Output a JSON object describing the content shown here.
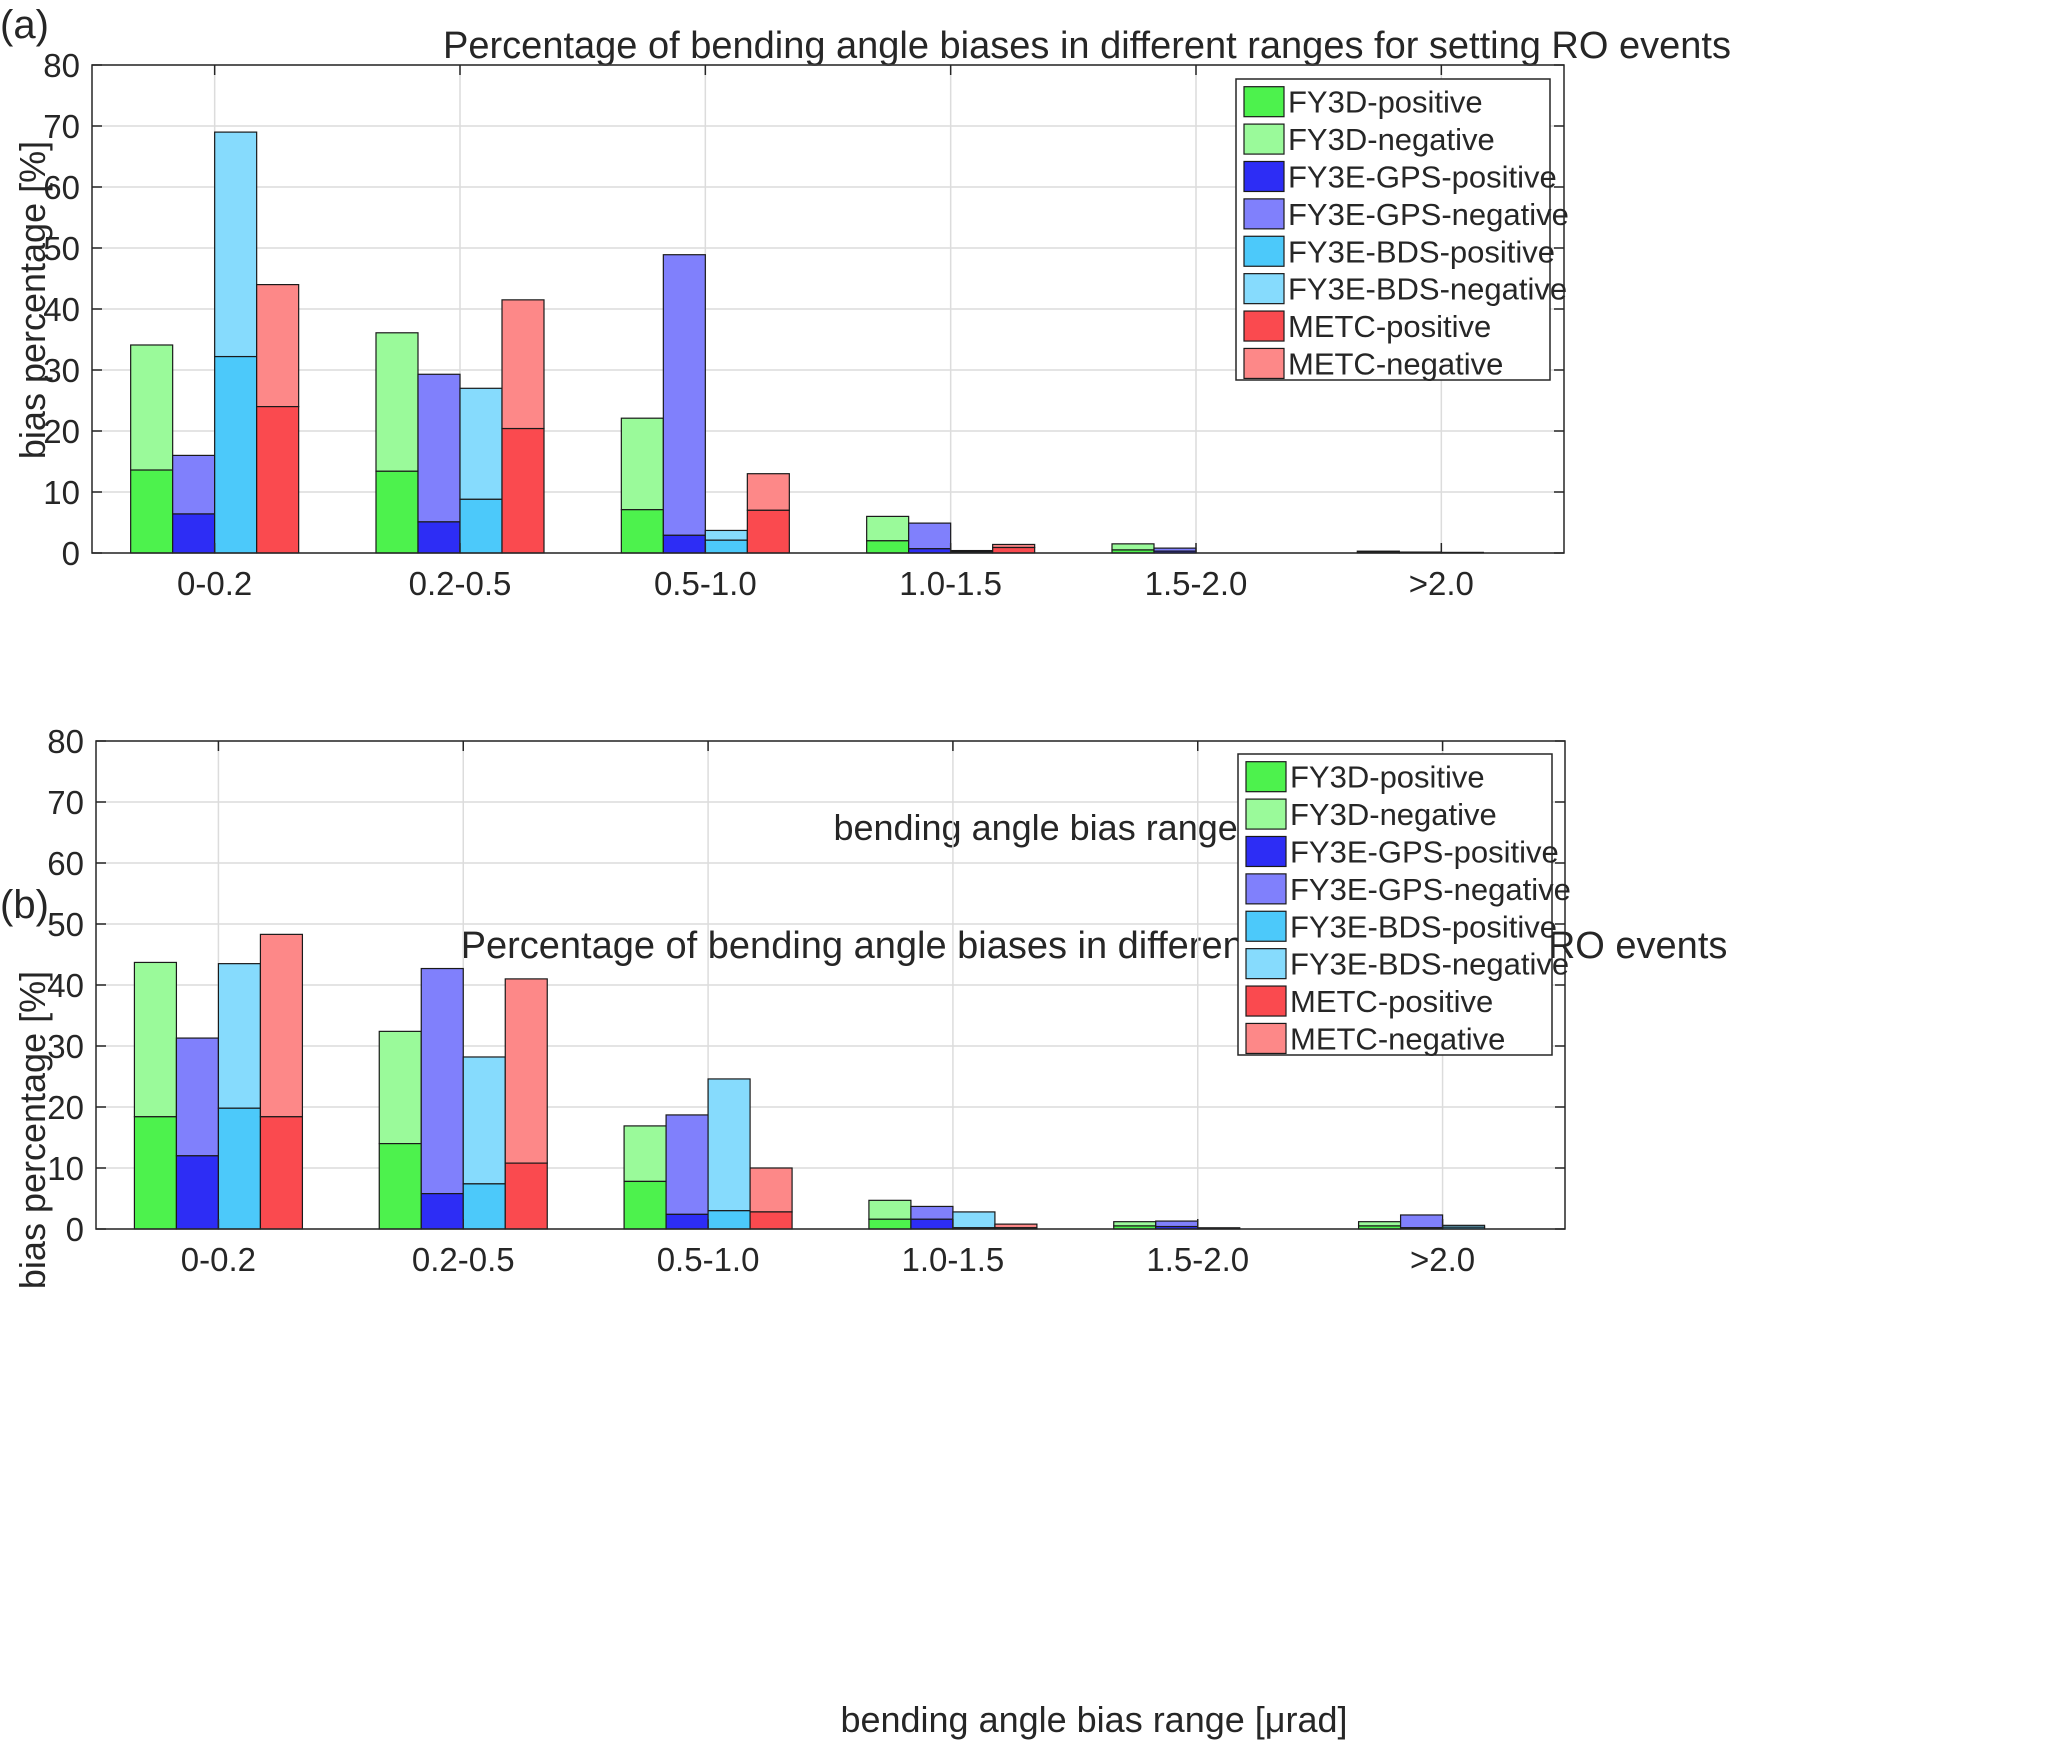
{
  "colors": {
    "FY3D-positive": "#4df24d",
    "FY3D-negative": "#9afa9a",
    "FY3E-GPS-positive": "#2d2df5",
    "FY3E-GPS-negative": "#8080fc",
    "FY3E-BDS-positive": "#4cc9fa",
    "FY3E-BDS-negative": "#86dbfd",
    "METC-positive": "#fa4a4f",
    "METC-negative": "#fd8888"
  },
  "chart_data": [
    {
      "type": "bar",
      "panel_label": "(a)",
      "title": "Percentage of bending angle biases in different ranges for setting RO events",
      "xlabel": "bending angle bias range [μrad]",
      "ylabel": "bias percentage [%]",
      "ylim": [
        0,
        80
      ],
      "yticks": [
        "0",
        "10",
        "20",
        "30",
        "40",
        "50",
        "60",
        "70",
        "80"
      ],
      "grid": true,
      "legend_position": "top-right",
      "categories": [
        "0-0.2",
        "0.2-0.5",
        "0.5-1.0",
        "1.0-1.5",
        "1.5-2.0",
        ">2.0"
      ],
      "legend": [
        "FY3D-positive",
        "FY3D-negative",
        "FY3E-GPS-positive",
        "FY3E-GPS-negative",
        "FY3E-BDS-positive",
        "FY3E-BDS-negative",
        "METC-positive",
        "METC-negative"
      ],
      "groups": [
        {
          "name": "FY3D",
          "positive": [
            13.6,
            13.4,
            7.1,
            2.0,
            0.5,
            0.1
          ],
          "total": [
            34.1,
            36.1,
            22.1,
            6.0,
            1.5,
            0.3
          ]
        },
        {
          "name": "FY3E-GPS",
          "positive": [
            6.4,
            5.1,
            2.9,
            0.7,
            0.3,
            0.05
          ],
          "total": [
            16.0,
            29.3,
            48.9,
            4.9,
            0.8,
            0.15
          ]
        },
        {
          "name": "FY3E-BDS",
          "positive": [
            32.2,
            8.8,
            2.1,
            0.2,
            0.0,
            0.05
          ],
          "total": [
            69.0,
            27.0,
            3.7,
            0.4,
            0.0,
            0.1
          ]
        },
        {
          "name": "METC",
          "positive": [
            24.0,
            20.4,
            7.0,
            0.9,
            0.0,
            0.0
          ],
          "total": [
            44.0,
            41.5,
            13.0,
            1.4,
            0.0,
            0.0
          ]
        }
      ]
    },
    {
      "type": "bar",
      "panel_label": "(b)",
      "title": "Percentage of bending angle biases in different ranges for rising RO events",
      "xlabel": "bending angle bias range [μrad]",
      "ylabel": "bias percentage [%]",
      "ylim": [
        0,
        80
      ],
      "yticks": [
        "0",
        "10",
        "20",
        "30",
        "40",
        "50",
        "60",
        "70",
        "80"
      ],
      "grid": true,
      "legend_position": "top-right",
      "categories": [
        "0-0.2",
        "0.2-0.5",
        "0.5-1.0",
        "1.0-1.5",
        "1.5-2.0",
        ">2.0"
      ],
      "legend": [
        "FY3D-positive",
        "FY3D-negative",
        "FY3E-GPS-positive",
        "FY3E-GPS-negative",
        "FY3E-BDS-positive",
        "FY3E-BDS-negative",
        "METC-positive",
        "METC-negative"
      ],
      "groups": [
        {
          "name": "FY3D",
          "positive": [
            18.4,
            14.0,
            7.8,
            1.6,
            0.5,
            0.5
          ],
          "total": [
            43.7,
            32.4,
            16.9,
            4.7,
            1.2,
            1.2
          ]
        },
        {
          "name": "FY3E-GPS",
          "positive": [
            12.0,
            5.8,
            2.4,
            1.6,
            0.4,
            0.2
          ],
          "total": [
            31.3,
            42.7,
            18.7,
            3.7,
            1.3,
            2.3
          ]
        },
        {
          "name": "FY3E-BDS",
          "positive": [
            19.8,
            7.4,
            3.0,
            0.2,
            0.0,
            0.3
          ],
          "total": [
            43.5,
            28.2,
            24.6,
            2.8,
            0.2,
            0.6
          ]
        },
        {
          "name": "METC",
          "positive": [
            18.4,
            10.8,
            2.8,
            0.2,
            0.0,
            0.0
          ],
          "total": [
            48.3,
            41.0,
            10.0,
            0.8,
            0.0,
            0.0
          ]
        }
      ]
    }
  ]
}
